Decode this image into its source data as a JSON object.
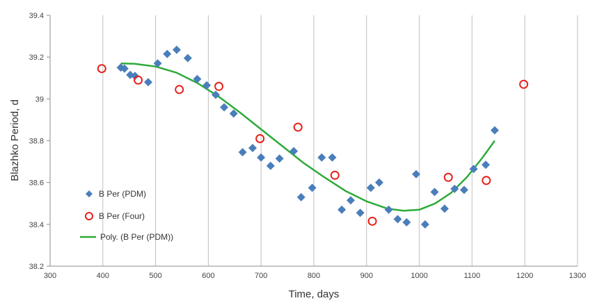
{
  "chart_data": {
    "type": "scatter",
    "title": "",
    "xlabel": "Time, days",
    "ylabel": "Blazhko Period, d",
    "xlim": [
      300,
      1300
    ],
    "ylim": [
      38.2,
      39.4
    ],
    "x_ticks": [
      "300",
      "400",
      "500",
      "600",
      "700",
      "800",
      "900",
      "1000",
      "1100",
      "1200",
      "1300"
    ],
    "y_ticks": [
      "38.2",
      "38.4",
      "38.6",
      "38.8",
      "39",
      "39.2",
      "39.4"
    ],
    "grid": "vertical",
    "legend_position": "left-middle",
    "series": [
      {
        "name": "B Per (PDM)",
        "marker": "diamond",
        "color": "#4a7ebb",
        "x": [
          434,
          441,
          452,
          461,
          486,
          504,
          522,
          540,
          561,
          579,
          597,
          614,
          630,
          648,
          665,
          684,
          700,
          718,
          735,
          762,
          776,
          797,
          815,
          835,
          853,
          870,
          888,
          908,
          924,
          942,
          959,
          976,
          994,
          1011,
          1029,
          1048,
          1067,
          1085,
          1103,
          1126,
          1143
        ],
        "y": [
          39.15,
          39.145,
          39.115,
          39.11,
          39.08,
          39.17,
          39.215,
          39.235,
          39.195,
          39.095,
          39.065,
          39.02,
          38.96,
          38.93,
          38.745,
          38.765,
          38.72,
          38.68,
          38.715,
          38.75,
          38.53,
          38.575,
          38.72,
          38.72,
          38.47,
          38.515,
          38.455,
          38.575,
          38.6,
          38.47,
          38.425,
          38.41,
          38.64,
          38.4,
          38.555,
          38.475,
          38.57,
          38.565,
          38.665,
          38.685,
          38.85
        ]
      },
      {
        "name": "B Per (Four)",
        "marker": "open-circle",
        "color": "#e8201a",
        "x": [
          398,
          467,
          545,
          620,
          698,
          770,
          840,
          911,
          1055,
          1127,
          1198
        ],
        "y": [
          39.145,
          39.09,
          39.045,
          39.06,
          38.81,
          38.865,
          38.635,
          38.415,
          38.625,
          38.61,
          39.07
        ]
      },
      {
        "name": "Poly. (B Per (PDM))",
        "marker": "line",
        "color": "#2eaa3a",
        "x": [
          434,
          460,
          500,
          540,
          580,
          620,
          660,
          700,
          740,
          780,
          820,
          860,
          900,
          940,
          970,
          1000,
          1030,
          1060,
          1090,
          1120,
          1143
        ],
        "y": [
          39.17,
          39.168,
          39.155,
          39.125,
          39.075,
          39.01,
          38.935,
          38.855,
          38.775,
          38.695,
          38.625,
          38.56,
          38.51,
          38.475,
          38.465,
          38.47,
          38.5,
          38.55,
          38.625,
          38.72,
          38.8
        ]
      }
    ]
  }
}
